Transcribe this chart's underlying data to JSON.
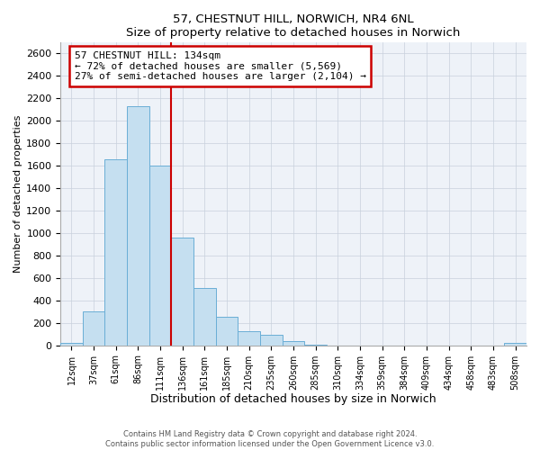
{
  "title": "57, CHESTNUT HILL, NORWICH, NR4 6NL",
  "subtitle": "Size of property relative to detached houses in Norwich",
  "xlabel": "Distribution of detached houses by size in Norwich",
  "ylabel": "Number of detached properties",
  "bin_labels": [
    "12sqm",
    "37sqm",
    "61sqm",
    "86sqm",
    "111sqm",
    "136sqm",
    "161sqm",
    "185sqm",
    "210sqm",
    "235sqm",
    "260sqm",
    "285sqm",
    "310sqm",
    "334sqm",
    "359sqm",
    "384sqm",
    "409sqm",
    "434sqm",
    "458sqm",
    "483sqm",
    "508sqm"
  ],
  "bin_values": [
    20,
    300,
    1660,
    2130,
    1600,
    960,
    510,
    255,
    130,
    95,
    35,
    5,
    0,
    0,
    0,
    0,
    0,
    0,
    0,
    0,
    20
  ],
  "bar_facecolor": "#c5dff0",
  "bar_edgecolor": "#6aaed6",
  "vline_x": 5,
  "vline_color": "#cc0000",
  "annotation_title": "57 CHESTNUT HILL: 134sqm",
  "annotation_line2": "← 72% of detached houses are smaller (5,569)",
  "annotation_line3": "27% of semi-detached houses are larger (2,104) →",
  "annotation_box_edgecolor": "#cc0000",
  "ylim": [
    0,
    2700
  ],
  "yticks": [
    0,
    200,
    400,
    600,
    800,
    1000,
    1200,
    1400,
    1600,
    1800,
    2000,
    2200,
    2400,
    2600
  ],
  "footer1": "Contains HM Land Registry data © Crown copyright and database right 2024.",
  "footer2": "Contains public sector information licensed under the Open Government Licence v3.0.",
  "background_color": "#ffffff",
  "plot_bg_color": "#eef2f8",
  "grid_color": "#c8d0dc"
}
